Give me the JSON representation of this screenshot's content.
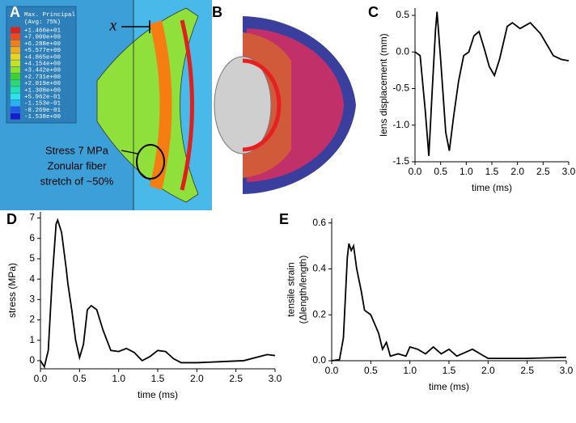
{
  "figure_a": {
    "panel": "A",
    "legend_title": "Max. Principal",
    "legend_subtitle": "(Avg: 75%)",
    "legend": [
      {
        "label": "+1.466e+01",
        "color": "#e0201c"
      },
      {
        "label": "+7.000e+00",
        "color": "#f04a16"
      },
      {
        "label": "+6.288e+00",
        "color": "#f57d12"
      },
      {
        "label": "+5.577e+00",
        "color": "#f5a818"
      },
      {
        "label": "+4.865e+00",
        "color": "#eed21c"
      },
      {
        "label": "+4.154e+00",
        "color": "#c8e01e"
      },
      {
        "label": "+3.442e+00",
        "color": "#8fe020"
      },
      {
        "label": "+2.731e+00",
        "color": "#3fd22a"
      },
      {
        "label": "+2.019e+00",
        "color": "#2ed86a"
      },
      {
        "label": "+1.308e+00",
        "color": "#27e0b0"
      },
      {
        "label": "+5.962e-01",
        "color": "#2fe3e3"
      },
      {
        "label": "-1.153e-01",
        "color": "#29b2ee"
      },
      {
        "label": "-8.269e-01",
        "color": "#2258e8"
      },
      {
        "label": "-1.538e+00",
        "color": "#1a1ad0"
      }
    ],
    "marker": "x",
    "annotation": [
      "Stress 7 MPa",
      "Zonular fiber",
      "stretch of ~50%"
    ]
  },
  "figure_b": {
    "panel": "B"
  },
  "chart_data": [
    {
      "type": "line",
      "panel": "C",
      "x_label": "time (ms)",
      "y_label": [
        "lens displacement (mm)"
      ],
      "color": "#000000",
      "x": [
        0,
        0.1,
        0.2,
        0.27,
        0.33,
        0.4,
        0.43,
        0.5,
        0.6,
        0.67,
        0.75,
        0.85,
        0.95,
        1.05,
        1.15,
        1.25,
        1.35,
        1.45,
        1.55,
        1.65,
        1.8,
        1.9,
        2.05,
        2.25,
        2.45,
        2.7,
        2.85,
        3.0
      ],
      "values": [
        0,
        -0.05,
        -0.8,
        -1.42,
        -0.6,
        0.3,
        0.55,
        -0.1,
        -1.1,
        -1.35,
        -0.9,
        -0.4,
        -0.05,
        0.0,
        0.22,
        0.28,
        0.05,
        -0.2,
        -0.32,
        -0.1,
        0.35,
        0.4,
        0.32,
        0.4,
        0.25,
        -0.05,
        -0.1,
        -0.12
      ],
      "xlim": [
        0,
        3
      ],
      "ylim": [
        -1.5,
        0.6
      ],
      "xticks": [
        {
          "value": 0,
          "label": "0.0"
        },
        {
          "value": 0.5,
          "label": "0.5"
        },
        {
          "value": 1,
          "label": "1.0"
        },
        {
          "value": 1.5,
          "label": "1.5"
        },
        {
          "value": 2,
          "label": "2.0"
        },
        {
          "value": 2.5,
          "label": "2.5"
        },
        {
          "value": 3,
          "label": "3.0"
        }
      ],
      "yticks": [
        {
          "value": 0.5,
          "label": "0.5"
        },
        {
          "value": 0,
          "label": "0.0"
        },
        {
          "value": -0.5,
          "label": "-0.5"
        },
        {
          "value": -1,
          "label": "-1.0"
        },
        {
          "value": -1.5,
          "label": "-1.5"
        }
      ]
    },
    {
      "type": "line",
      "panel": "D",
      "x_label": "time (ms)",
      "y_label": [
        "stress (MPa)"
      ],
      "color": "#000000",
      "x": [
        0,
        0.05,
        0.1,
        0.15,
        0.2,
        0.22,
        0.27,
        0.33,
        0.35,
        0.4,
        0.45,
        0.5,
        0.55,
        0.6,
        0.65,
        0.72,
        0.8,
        0.9,
        1.0,
        1.1,
        1.2,
        1.3,
        1.4,
        1.5,
        1.6,
        1.7,
        1.8,
        2.0,
        2.3,
        2.6,
        2.8,
        2.9,
        3.0
      ],
      "values": [
        0,
        -0.3,
        0.5,
        4,
        6.7,
        6.9,
        6.3,
        4.5,
        3.8,
        2.5,
        1,
        0.15,
        0.8,
        2.5,
        2.7,
        2.5,
        1.5,
        0.5,
        0.45,
        0.6,
        0.4,
        0.0,
        0.2,
        0.5,
        0.45,
        0.1,
        -0.1,
        -0.1,
        -0.05,
        0.0,
        0.2,
        0.3,
        0.25
      ],
      "xlim": [
        0,
        3
      ],
      "ylim": [
        -0.4,
        7.3
      ],
      "xticks": [
        {
          "value": 0,
          "label": "0.0"
        },
        {
          "value": 0.5,
          "label": "0.5"
        },
        {
          "value": 1,
          "label": "1.0"
        },
        {
          "value": 1.5,
          "label": "1.5"
        },
        {
          "value": 2,
          "label": "2.0"
        },
        {
          "value": 2.5,
          "label": "2.5"
        },
        {
          "value": 3,
          "label": "3.0"
        }
      ],
      "yticks": [
        0,
        1,
        2,
        3,
        4,
        5,
        6,
        7
      ]
    },
    {
      "type": "line",
      "panel": "E",
      "x_label": "time (ms)",
      "y_label": [
        "tensile strain",
        "(Δlength/length)"
      ],
      "color": "#000000",
      "x": [
        0,
        0.1,
        0.15,
        0.2,
        0.22,
        0.25,
        0.28,
        0.32,
        0.38,
        0.42,
        0.5,
        0.55,
        0.6,
        0.65,
        0.7,
        0.75,
        0.85,
        0.95,
        1.0,
        1.1,
        1.2,
        1.3,
        1.4,
        1.5,
        1.6,
        1.8,
        1.9,
        2.0,
        2.5,
        3.0
      ],
      "values": [
        0,
        0.005,
        0.1,
        0.45,
        0.51,
        0.48,
        0.5,
        0.4,
        0.3,
        0.22,
        0.2,
        0.16,
        0.12,
        0.05,
        0.08,
        0.02,
        0.03,
        0.02,
        0.06,
        0.05,
        0.03,
        0.06,
        0.03,
        0.05,
        0.02,
        0.05,
        0.03,
        0.01,
        0.01,
        0.015
      ],
      "xlim": [
        0,
        3
      ],
      "ylim": [
        0,
        0.62
      ],
      "xticks": [
        {
          "value": 0,
          "label": "0.0"
        },
        {
          "value": 0.5,
          "label": "0.5"
        },
        {
          "value": 1,
          "label": "1.0"
        },
        {
          "value": 1.5,
          "label": "1.5"
        },
        {
          "value": 2,
          "label": "2.0"
        },
        {
          "value": 2.5,
          "label": "2.5"
        },
        {
          "value": 3,
          "label": "3.0"
        }
      ],
      "yticks": [
        {
          "value": 0,
          "label": "0.0"
        },
        {
          "value": 0.2,
          "label": "0.2"
        },
        {
          "value": 0.4,
          "label": "0.4"
        },
        {
          "value": 0.6,
          "label": "0.6"
        }
      ]
    }
  ]
}
